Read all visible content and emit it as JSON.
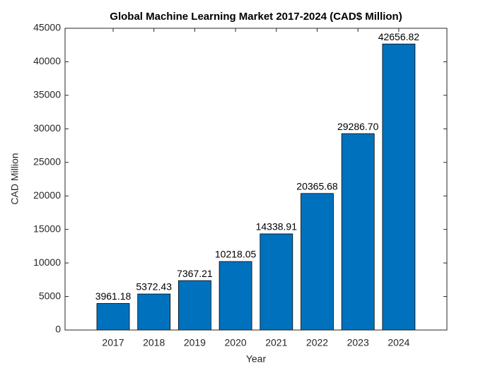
{
  "chart_data": {
    "type": "bar",
    "title": "Global Machine Learning Market 2017-2024 (CAD$ Million)",
    "xlabel": "Year",
    "ylabel": "CAD Million",
    "categories": [
      "2017",
      "2018",
      "2019",
      "2020",
      "2021",
      "2022",
      "2023",
      "2024"
    ],
    "values": [
      3961.18,
      5372.43,
      7367.21,
      10218.05,
      14338.91,
      20365.68,
      29286.7,
      42656.82
    ],
    "value_labels": [
      "3961.18",
      "5372.43",
      "7367.21",
      "10218.05",
      "14338.91",
      "20365.68",
      "29286.70",
      "42656.82"
    ],
    "color": "#0072bd",
    "ylim": [
      0,
      45000
    ],
    "yticks": [
      0,
      5000,
      10000,
      15000,
      20000,
      25000,
      30000,
      35000,
      40000,
      45000
    ],
    "grid": false
  }
}
